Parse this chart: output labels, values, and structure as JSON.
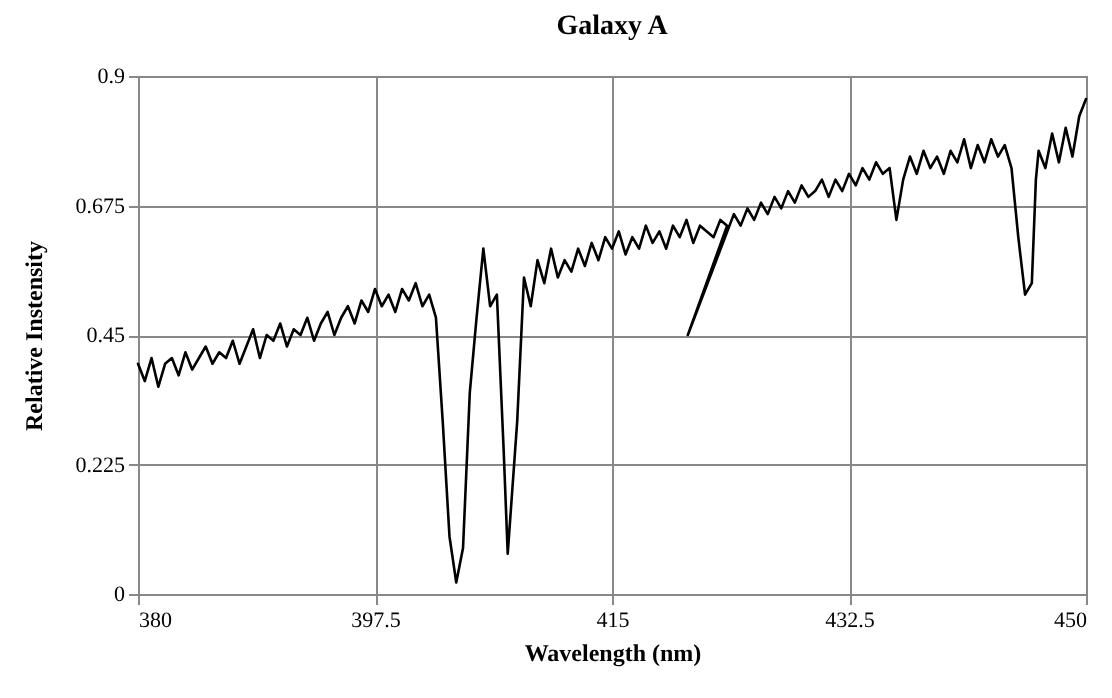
{
  "chart_data": {
    "type": "line",
    "title": "Galaxy A",
    "xlabel": "Wavelength (nm)",
    "ylabel": "Relative Instensity",
    "x": [
      380,
      380.5,
      381,
      381.5,
      382,
      382.5,
      383,
      383.5,
      384,
      384.5,
      385,
      385.5,
      386,
      386.5,
      387,
      387.5,
      388,
      388.5,
      389,
      389.5,
      390,
      390.5,
      391,
      391.5,
      392,
      392.5,
      393,
      393.5,
      394,
      394.5,
      395,
      395.5,
      396,
      396.5,
      397,
      397.5,
      398,
      398.5,
      399,
      399.5,
      400,
      400.5,
      401,
      401.5,
      402,
      402.5,
      403,
      403.5,
      404,
      404.5,
      405,
      405.5,
      406,
      406.5,
      407,
      407.3,
      408,
      408.5,
      409,
      409.5,
      410,
      410.5,
      411,
      411.5,
      412,
      412.5,
      413,
      413.5,
      414,
      414.5,
      415,
      415.5,
      416,
      416.5,
      417,
      417.5,
      418,
      418.5,
      419,
      419.5,
      420,
      420.5,
      421,
      421.5,
      422,
      422.5,
      423,
      423.5,
      420.6,
      424,
      424.5,
      425,
      425.5,
      426,
      426.5,
      427,
      427.5,
      428,
      428.5,
      429,
      429.5,
      430,
      430.5,
      431,
      431.5,
      432,
      432.5,
      433,
      433.5,
      434,
      434.5,
      435,
      435.5,
      436,
      436.5,
      437,
      437.5,
      438,
      438.5,
      439,
      439.5,
      440,
      440.5,
      441,
      441.5,
      442,
      442.5,
      443,
      443.5,
      444,
      444.5,
      445,
      445.5,
      446,
      446.3,
      446.5,
      447,
      447.5,
      448,
      448.5,
      449,
      449.5,
      450
    ],
    "series": [
      {
        "color": "#000000",
        "values": [
          0.4,
          0.37,
          0.41,
          0.36,
          0.4,
          0.41,
          0.38,
          0.42,
          0.39,
          0.41,
          0.43,
          0.4,
          0.42,
          0.41,
          0.44,
          0.4,
          0.43,
          0.46,
          0.41,
          0.45,
          0.44,
          0.47,
          0.43,
          0.46,
          0.45,
          0.48,
          0.44,
          0.47,
          0.49,
          0.45,
          0.48,
          0.5,
          0.47,
          0.51,
          0.49,
          0.53,
          0.5,
          0.52,
          0.49,
          0.53,
          0.51,
          0.54,
          0.5,
          0.52,
          0.48,
          0.3,
          0.1,
          0.02,
          0.08,
          0.35,
          0.48,
          0.6,
          0.5,
          0.52,
          0.25,
          0.07,
          0.3,
          0.55,
          0.5,
          0.58,
          0.54,
          0.6,
          0.55,
          0.58,
          0.56,
          0.6,
          0.57,
          0.61,
          0.58,
          0.62,
          0.6,
          0.63,
          0.59,
          0.62,
          0.6,
          0.64,
          0.61,
          0.63,
          0.6,
          0.64,
          0.62,
          0.65,
          0.61,
          0.64,
          0.63,
          0.62,
          0.65,
          0.64,
          0.45,
          0.66,
          0.64,
          0.67,
          0.65,
          0.68,
          0.66,
          0.69,
          0.67,
          0.7,
          0.68,
          0.71,
          0.69,
          0.7,
          0.72,
          0.69,
          0.72,
          0.7,
          0.73,
          0.71,
          0.74,
          0.72,
          0.75,
          0.73,
          0.74,
          0.65,
          0.72,
          0.76,
          0.73,
          0.77,
          0.74,
          0.76,
          0.73,
          0.77,
          0.75,
          0.79,
          0.74,
          0.78,
          0.75,
          0.79,
          0.76,
          0.78,
          0.74,
          0.62,
          0.52,
          0.54,
          0.72,
          0.77,
          0.74,
          0.8,
          0.75,
          0.81,
          0.76,
          0.83,
          0.86
        ]
      }
    ],
    "xlim": [
      380,
      450
    ],
    "xticks": [
      380,
      397.5,
      415,
      432.5,
      450
    ],
    "ylim": [
      0,
      0.9
    ],
    "yticks": [
      0,
      0.225,
      0.45,
      0.675,
      0.9
    ],
    "grid": true,
    "line_style": "solid"
  }
}
